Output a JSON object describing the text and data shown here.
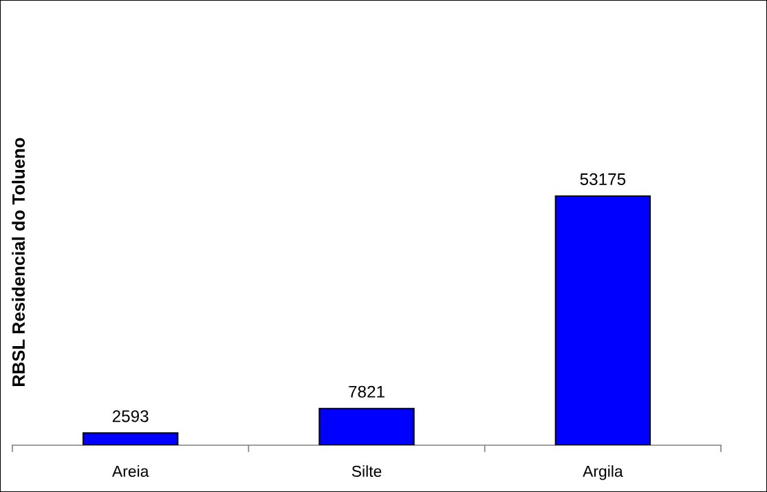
{
  "chart_data": {
    "type": "bar",
    "ylabel": "RBSL Residencial do Tolueno",
    "categories": [
      "Areia",
      "Silte",
      "Argila"
    ],
    "values": [
      2593,
      7821,
      53175
    ],
    "color": "#0000ff",
    "data_labels": true
  }
}
